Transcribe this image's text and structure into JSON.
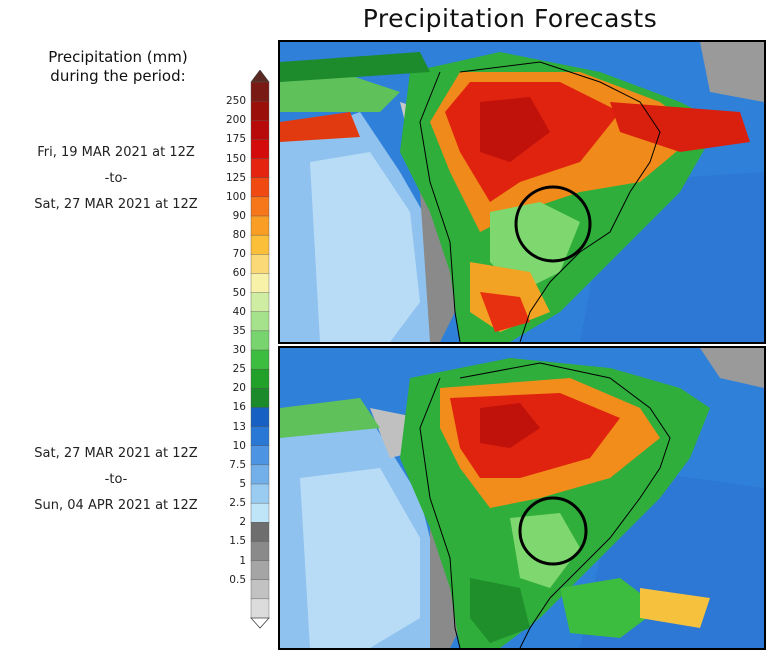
{
  "title": "Precipitation Forecasts",
  "legend": {
    "heading_line1": "Precipitation (mm)",
    "heading_line2": "during the period:",
    "ticks": [
      "250",
      "200",
      "175",
      "150",
      "125",
      "100",
      "90",
      "80",
      "70",
      "60",
      "50",
      "40",
      "35",
      "30",
      "25",
      "20",
      "16",
      "13",
      "10",
      "7.5",
      "5",
      "2.5",
      "2",
      "1.5",
      "1",
      "0.5"
    ],
    "colors": [
      "#7a1a14",
      "#9a0f0a",
      "#b80a0a",
      "#d40b0b",
      "#e52410",
      "#f04a12",
      "#f6761a",
      "#f99d24",
      "#fbbf3a",
      "#fcd977",
      "#f7f2a8",
      "#cfeea3",
      "#a6e28b",
      "#77d46e",
      "#3dbd3f",
      "#21a12a",
      "#1b8a2a",
      "#1560c2",
      "#2a78d6",
      "#4d95e2",
      "#73b0ea",
      "#9acbf1",
      "#bfe6f8",
      "#6e6e6e",
      "#8a8a8a",
      "#a5a5a5",
      "#c2c2c2",
      "#dcdcdc"
    ]
  },
  "periods": [
    {
      "start": "Fri, 19 MAR 2021 at 12Z",
      "sep": "-to-",
      "end": "Sat, 27 MAR 2021 at 12Z"
    },
    {
      "start": "Sat, 27 MAR 2021 at 12Z",
      "sep": "-to-",
      "end": "Sun, 04 APR 2021 at 12Z"
    }
  ]
}
